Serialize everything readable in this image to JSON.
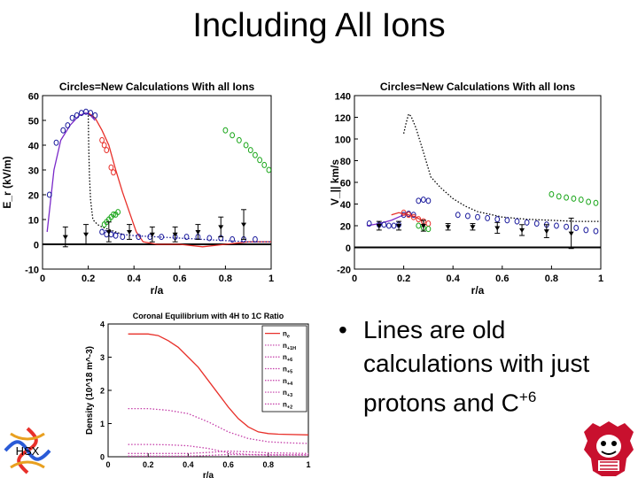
{
  "slide": {
    "title": "Including All Ions",
    "bullet_main": "Lines are old calculations with just protons and C",
    "bullet_sup": "+6",
    "logo_left_text": "HSX"
  },
  "colors": {
    "red": "#e8302a",
    "purple": "#7a29c9",
    "blue": "#1a1a9c",
    "green": "#1aa61a",
    "black": "#000000",
    "magenta": "#c43ca8"
  },
  "chart_data": [
    {
      "type": "line",
      "title": "Circles=New Calculations With all Ions",
      "xlabel": "r/a",
      "ylabel": "E_r (kV/m)",
      "xlim": [
        0,
        1
      ],
      "ylim": [
        -10,
        60
      ],
      "xticks": [
        "0",
        "0.2",
        "0.4",
        "0.6",
        "0.8",
        "1"
      ],
      "yticks": [
        "-10",
        "0",
        "10",
        "20",
        "30",
        "40",
        "50",
        "60"
      ],
      "lines": [
        {
          "color": "purple",
          "dash": "solid",
          "x": [
            0.02,
            0.05,
            0.08,
            0.12,
            0.16,
            0.19,
            0.21,
            0.23
          ],
          "y": [
            5,
            30,
            42,
            48,
            52,
            53,
            52,
            50
          ]
        },
        {
          "color": "red",
          "dash": "solid",
          "x": [
            0.2,
            0.23,
            0.26,
            0.29,
            0.32,
            0.35,
            0.38,
            0.41,
            0.44,
            0.5,
            0.6,
            0.7,
            0.8,
            0.9,
            1.0
          ],
          "y": [
            53,
            51,
            46,
            40,
            30,
            21,
            13,
            5,
            1,
            0,
            0,
            -1,
            0,
            1,
            1
          ]
        },
        {
          "color": "black",
          "dash": "dotted",
          "x": [
            0.2,
            0.202,
            0.205,
            0.21,
            0.22,
            0.24,
            0.26,
            0.29,
            0.32,
            0.35
          ],
          "y": [
            52,
            40,
            28,
            18,
            10,
            8,
            7,
            6,
            5,
            4
          ]
        },
        {
          "color": "blue",
          "dash": "dotted",
          "x": [
            0.26,
            0.3,
            0.35,
            0.4,
            0.5,
            0.6,
            0.7,
            0.8,
            0.9,
            1.0
          ],
          "y": [
            6,
            5,
            4,
            3.5,
            3,
            2.5,
            2,
            1.5,
            1,
            1
          ]
        }
      ],
      "circles": [
        {
          "color": "blue",
          "x": [
            0.03,
            0.06,
            0.09,
            0.11,
            0.13,
            0.15,
            0.17,
            0.19,
            0.21,
            0.23,
            0.26,
            0.28,
            0.3,
            0.32,
            0.35,
            0.42,
            0.47,
            0.52,
            0.58,
            0.63,
            0.68,
            0.73,
            0.78,
            0.83,
            0.88,
            0.93
          ],
          "y": [
            20,
            41,
            46,
            48,
            51,
            52,
            53,
            53.5,
            53,
            52,
            5,
            4,
            4,
            3.5,
            3,
            3,
            3,
            3,
            3,
            3,
            3,
            2.5,
            2.5,
            2,
            2,
            2
          ]
        },
        {
          "color": "red",
          "x": [
            0.26,
            0.27,
            0.28,
            0.3,
            0.31
          ],
          "y": [
            42,
            40,
            38,
            31,
            29
          ]
        },
        {
          "color": "green",
          "x": [
            0.27,
            0.28,
            0.29,
            0.3,
            0.31,
            0.32,
            0.33
          ],
          "y": [
            8,
            9,
            10,
            11,
            12,
            12,
            13
          ]
        },
        {
          "color": "green",
          "x": [
            0.8,
            0.83,
            0.86,
            0.89,
            0.91,
            0.93,
            0.95,
            0.97,
            0.99
          ],
          "y": [
            46,
            44,
            42,
            40,
            38,
            36,
            34,
            32,
            30
          ]
        }
      ],
      "errorbars": [
        {
          "x": 0.1,
          "y": 3,
          "err": 4
        },
        {
          "x": 0.19,
          "y": 4,
          "err": 4
        },
        {
          "x": 0.29,
          "y": 5,
          "err": 4
        },
        {
          "x": 0.38,
          "y": 5,
          "err": 3
        },
        {
          "x": 0.48,
          "y": 4,
          "err": 3
        },
        {
          "x": 0.58,
          "y": 4,
          "err": 3
        },
        {
          "x": 0.68,
          "y": 5,
          "err": 3
        },
        {
          "x": 0.78,
          "y": 7,
          "err": 4
        },
        {
          "x": 0.88,
          "y": 8,
          "err": 6
        }
      ]
    },
    {
      "type": "line",
      "title": "Circles=New Calculations With all Ions",
      "xlabel": "r/a",
      "ylabel": "V_|| km/s",
      "xlim": [
        0,
        1
      ],
      "ylim": [
        -20,
        140
      ],
      "xticks": [
        "0",
        "0.2",
        "0.4",
        "0.6",
        "0.8",
        "1"
      ],
      "yticks": [
        "-20",
        "0",
        "20",
        "40",
        "60",
        "80",
        "100",
        "120",
        "140"
      ],
      "lines": [
        {
          "color": "black",
          "dash": "dotted",
          "x": [
            0.2,
            0.21,
            0.22,
            0.23,
            0.25,
            0.28,
            0.31,
            0.35,
            0.4,
            0.45,
            0.5,
            0.6,
            0.7,
            0.8,
            0.9,
            1.0
          ],
          "y": [
            105,
            115,
            123,
            121,
            110,
            88,
            65,
            55,
            45,
            38,
            33,
            28,
            26,
            25,
            24,
            24
          ]
        },
        {
          "color": "red",
          "dash": "solid",
          "x": [
            0.15,
            0.18,
            0.2,
            0.22,
            0.25,
            0.28
          ],
          "y": [
            30,
            32,
            31,
            30,
            28,
            24
          ]
        },
        {
          "color": "purple",
          "dash": "solid",
          "x": [
            0.05,
            0.1,
            0.15,
            0.18,
            0.2
          ],
          "y": [
            20,
            22,
            25,
            28,
            30
          ]
        }
      ],
      "circles": [
        {
          "color": "blue",
          "x": [
            0.06,
            0.1,
            0.12,
            0.14,
            0.16,
            0.18,
            0.2,
            0.22,
            0.24,
            0.26,
            0.28,
            0.3,
            0.42,
            0.46,
            0.5,
            0.54,
            0.58,
            0.62,
            0.66,
            0.7,
            0.74,
            0.78,
            0.82,
            0.86,
            0.9,
            0.94,
            0.98
          ],
          "y": [
            22,
            21,
            21,
            20,
            20,
            21,
            30,
            31,
            30,
            43,
            44,
            43,
            30,
            29,
            28,
            27,
            26,
            25,
            24,
            23,
            22,
            21,
            20,
            19,
            18,
            16,
            15
          ]
        },
        {
          "color": "red",
          "x": [
            0.2,
            0.22,
            0.24,
            0.26,
            0.28,
            0.3
          ],
          "y": [
            32,
            30,
            28,
            26,
            24,
            22
          ]
        },
        {
          "color": "green",
          "x": [
            0.26,
            0.28,
            0.3
          ],
          "y": [
            20,
            18,
            17
          ]
        },
        {
          "color": "green",
          "x": [
            0.8,
            0.83,
            0.86,
            0.89,
            0.92,
            0.95,
            0.98
          ],
          "y": [
            49,
            47,
            46,
            45,
            44,
            42,
            41
          ]
        }
      ],
      "errorbars": [
        {
          "x": 0.1,
          "y": 20,
          "err": 4
        },
        {
          "x": 0.18,
          "y": 20,
          "err": 4
        },
        {
          "x": 0.28,
          "y": 20,
          "err": 5
        },
        {
          "x": 0.38,
          "y": 19,
          "err": 3
        },
        {
          "x": 0.48,
          "y": 19,
          "err": 3
        },
        {
          "x": 0.58,
          "y": 18,
          "err": 5
        },
        {
          "x": 0.68,
          "y": 16,
          "err": 5
        },
        {
          "x": 0.78,
          "y": 15,
          "err": 6
        },
        {
          "x": 0.88,
          "y": 13,
          "err": 14
        }
      ]
    },
    {
      "type": "line",
      "title": "Coronal Equilibrium with 4H to 1C Ratio",
      "xlabel": "r/a",
      "ylabel": "Density (10^18 m^-3)",
      "xlim": [
        0,
        1
      ],
      "ylim": [
        0,
        4
      ],
      "xticks": [
        "0",
        "0.2",
        "0.4",
        "0.6",
        "0.8",
        "1"
      ],
      "yticks": [
        "0",
        "1",
        "2",
        "3",
        "4"
      ],
      "legend": {
        "placement": "upper-right",
        "entries": [
          {
            "label": "n",
            "sub": "e",
            "color": "red",
            "dash": "solid"
          },
          {
            "label": "n",
            "sub": "+1H",
            "color": "magenta",
            "dash": "dotted"
          },
          {
            "label": "n",
            "sub": "+6",
            "color": "magenta",
            "dash": "dotted"
          },
          {
            "label": "n",
            "sub": "+5",
            "color": "magenta",
            "dash": "dotted"
          },
          {
            "label": "n",
            "sub": "+4",
            "color": "magenta",
            "dash": "dotted"
          },
          {
            "label": "n",
            "sub": "+3",
            "color": "magenta",
            "dash": "dotted"
          },
          {
            "label": "n",
            "sub": "+2",
            "color": "magenta",
            "dash": "dotted"
          }
        ]
      },
      "lines": [
        {
          "color": "red",
          "dash": "solid",
          "x": [
            0.1,
            0.2,
            0.25,
            0.3,
            0.35,
            0.4,
            0.45,
            0.5,
            0.55,
            0.6,
            0.65,
            0.7,
            0.75,
            0.8,
            0.85,
            1.0
          ],
          "y": [
            3.7,
            3.7,
            3.65,
            3.5,
            3.3,
            3.0,
            2.7,
            2.3,
            1.9,
            1.5,
            1.15,
            0.9,
            0.75,
            0.7,
            0.68,
            0.66
          ]
        },
        {
          "color": "magenta",
          "dash": "dotted",
          "x": [
            0.1,
            0.2,
            0.3,
            0.4,
            0.5,
            0.6,
            0.7,
            0.8,
            0.9,
            1.0
          ],
          "y": [
            1.45,
            1.45,
            1.4,
            1.3,
            1.05,
            0.75,
            0.55,
            0.45,
            0.42,
            0.4
          ]
        },
        {
          "color": "magenta",
          "dash": "dotted",
          "x": [
            0.1,
            0.2,
            0.3,
            0.4,
            0.5,
            0.6,
            0.7,
            0.8,
            1.0
          ],
          "y": [
            0.37,
            0.37,
            0.36,
            0.33,
            0.25,
            0.12,
            0.07,
            0.06,
            0.06
          ]
        },
        {
          "color": "magenta",
          "dash": "dotted",
          "x": [
            0.1,
            0.3,
            0.4,
            0.5,
            0.6,
            0.7,
            0.8,
            1.0
          ],
          "y": [
            0.1,
            0.1,
            0.1,
            0.13,
            0.17,
            0.15,
            0.12,
            0.1
          ]
        },
        {
          "color": "magenta",
          "dash": "dotted",
          "x": [
            0.1,
            0.4,
            0.5,
            0.6,
            0.7,
            0.8,
            1.0
          ],
          "y": [
            0.02,
            0.02,
            0.04,
            0.07,
            0.06,
            0.05,
            0.05
          ]
        }
      ]
    }
  ]
}
